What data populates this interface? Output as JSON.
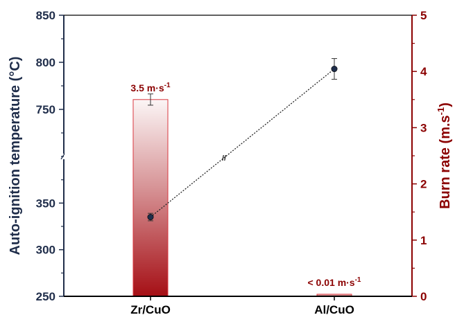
{
  "chart_data": {
    "type": "bar+line",
    "categories": [
      "Zr/CuO",
      "Al/CuO"
    ],
    "left_axis": {
      "label": "Auto-ignition temperature (°C)",
      "tick_labels": [
        "250",
        "300",
        "350",
        "750",
        "800",
        "850"
      ],
      "broken": true,
      "segments": [
        [
          250,
          400
        ],
        [
          700,
          850
        ]
      ],
      "color": "#1f2d4a"
    },
    "right_axis": {
      "label": "Burn rate (m.s",
      "label_sup": "-1",
      "label_close": ")",
      "ylim": [
        0,
        5
      ],
      "ticks": [
        0,
        1,
        2,
        3,
        4,
        5
      ],
      "color": "#8b0000"
    },
    "series": [
      {
        "type": "bar",
        "axis": "right",
        "values": [
          3.5,
          0.01
        ],
        "errors": [
          0.1,
          0
        ],
        "color": "#a50f15"
      },
      {
        "type": "line",
        "axis": "left",
        "values": [
          335,
          793
        ],
        "errors": [
          4,
          11
        ],
        "color": "#1f2d4a"
      }
    ],
    "data_labels": [
      {
        "category": "Zr/CuO",
        "main": "3.5 m·s",
        "sup": "-1"
      },
      {
        "category": "Al/CuO",
        "main": "< 0.01 m·s",
        "sup": "-1"
      }
    ],
    "break_symbol": "//"
  }
}
